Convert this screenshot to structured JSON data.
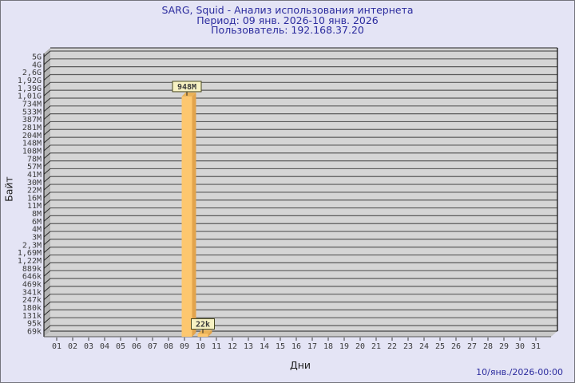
{
  "page": {
    "footer_timestamp": "10/янв./2026-00:00",
    "background": "#e4e4f5",
    "title_color": "#2b2b9e"
  },
  "chart_data": {
    "type": "bar",
    "title": "SARG, Squid - Анализ использования интернета",
    "subtitle": "Период: 09 янв. 2026-10 янв. 2026",
    "user_line": "Пользователь: 192.168.37.20",
    "xlabel": "Дни",
    "ylabel": "Байт",
    "x_categories": [
      "01",
      "02",
      "03",
      "04",
      "05",
      "06",
      "07",
      "08",
      "09",
      "10",
      "11",
      "12",
      "13",
      "14",
      "15",
      "16",
      "17",
      "18",
      "19",
      "20",
      "21",
      "22",
      "23",
      "24",
      "25",
      "26",
      "27",
      "28",
      "29",
      "30",
      "31"
    ],
    "y_tick_labels": [
      "5G",
      "4G",
      "2,6G",
      "1,92G",
      "1,39G",
      "1,01G",
      "734M",
      "533M",
      "387M",
      "281M",
      "204M",
      "148M",
      "108M",
      "78M",
      "57M",
      "41M",
      "30M",
      "22M",
      "16M",
      "11M",
      "8M",
      "6M",
      "4M",
      "3M",
      "2,3M",
      "1,69M",
      "1,22M",
      "889k",
      "646k",
      "469k",
      "341k",
      "247k",
      "180k",
      "131k",
      "95k",
      "69k"
    ],
    "y_scale": {
      "kind": "geometric",
      "min_label": "69k",
      "max_label": "5G",
      "min_bytes": 69000,
      "step_ratio": 1.375,
      "num_ticks": 36
    },
    "bars": [
      {
        "day": "09",
        "label": "948M",
        "bytes": 948000000
      },
      {
        "day": "10",
        "label": "22k",
        "bytes": 22000
      }
    ],
    "legend": null,
    "grid": "horizontal",
    "colors": {
      "bar_front": "#fdc76f",
      "bar_side": "#e2a44c",
      "bar_top": "#eab257",
      "annotation_bg": "#f7f2c3",
      "annotation_border": "#4a4a20",
      "annotation_text": "#111100",
      "panel": "#d5d5d5",
      "panel_wall": "#b4b4b4",
      "panel_floor": "#c9c9c9",
      "gridline": "#5a5a5a",
      "tick_text": "#3a3a3a"
    }
  }
}
